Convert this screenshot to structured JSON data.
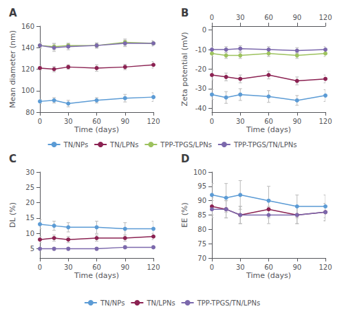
{
  "chart_data": [
    {
      "type": "line",
      "title": "A",
      "x": [
        0,
        15,
        30,
        60,
        90,
        120
      ],
      "xlabel": "Time (days)",
      "ylabel": "Mean diameter (nm)",
      "xlim": [
        0,
        120
      ],
      "xticks": [
        0,
        30,
        60,
        90,
        120
      ],
      "ylim": [
        80,
        160
      ],
      "yticks": [
        80,
        100,
        120,
        140,
        160
      ],
      "grid": false,
      "legend": "bottom",
      "marker": "circle",
      "series": [
        {
          "name": "TN/NPs",
          "color": "#5B9BD5",
          "values": [
            90,
            91,
            88,
            91,
            93,
            94
          ],
          "errors": [
            2,
            2.5,
            3,
            2.5,
            3.5,
            4
          ]
        },
        {
          "name": "TN/LPNs",
          "color": "#8B2252",
          "values": [
            121,
            120,
            122,
            121,
            122,
            124
          ],
          "errors": [
            2,
            2.5,
            2,
            3,
            2.5,
            3
          ]
        },
        {
          "name": "TPP-TPGS/LPNs",
          "color": "#9DC25E",
          "values": [
            142,
            141,
            142,
            142,
            145,
            144
          ],
          "errors": [
            2.5,
            3,
            2,
            2.5,
            3,
            2
          ]
        },
        {
          "name": "TPP-TPGS/TN/LPNs",
          "color": "#7B68AC",
          "values": [
            142,
            140,
            141,
            142,
            144,
            144
          ],
          "errors": [
            2.5,
            3.5,
            3,
            2,
            3,
            2.5
          ]
        }
      ]
    },
    {
      "type": "line",
      "title": "B",
      "x": [
        0,
        15,
        30,
        60,
        90,
        120
      ],
      "xlabel": "Time (days)",
      "ylabel": "Zeta potential (mV)",
      "xlim": [
        0,
        120
      ],
      "xticks": [
        0,
        30,
        60,
        90,
        120
      ],
      "x2lim": [
        0,
        120
      ],
      "x2ticks": [
        0,
        30,
        60,
        90,
        120
      ],
      "ylim": [
        -42,
        2
      ],
      "yticks": [
        -40,
        -30,
        -20,
        -10,
        0
      ],
      "grid": false,
      "marker": "circle",
      "series": [
        {
          "name": "TN/NPs",
          "color": "#5B9BD5",
          "values": [
            -33,
            -34.5,
            -33,
            -34,
            -36,
            -33.5
          ],
          "errors": [
            2.5,
            3,
            3,
            3,
            2.5,
            3
          ]
        },
        {
          "name": "TN/LPNs",
          "color": "#8B2252",
          "values": [
            -23,
            -24,
            -25,
            -23,
            -26,
            -25
          ],
          "errors": [
            2.5,
            2,
            2,
            2,
            2,
            2
          ]
        },
        {
          "name": "TPP-TPGS/LPNs",
          "color": "#9DC25E",
          "values": [
            -12,
            -13,
            -13,
            -12,
            -13,
            -12
          ],
          "errors": [
            1.5,
            1.5,
            1.5,
            1.5,
            1.5,
            1.5
          ]
        },
        {
          "name": "TPP-TPGS/TN/LPNs",
          "color": "#7B68AC",
          "values": [
            -10,
            -10,
            -9.5,
            -10,
            -10.5,
            -10
          ],
          "errors": [
            1.5,
            1.5,
            1.5,
            1.5,
            1.5,
            1.5
          ]
        }
      ]
    },
    {
      "type": "line",
      "title": "C",
      "x": [
        0,
        15,
        30,
        60,
        90,
        120
      ],
      "xlabel": "Time (days)",
      "ylabel": "DL (%)",
      "xlim": [
        0,
        120
      ],
      "xticks": [
        0,
        30,
        60,
        90,
        120
      ],
      "ylim": [
        2,
        30
      ],
      "yticks": [
        5,
        10,
        15,
        20,
        25,
        30
      ],
      "grid": false,
      "legend": "bottom",
      "marker": "circle",
      "series": [
        {
          "name": "TN/NPs",
          "color": "#5B9BD5",
          "values": [
            13,
            12.5,
            12,
            12,
            11.5,
            11.5
          ],
          "errors": [
            1.5,
            1.5,
            1.5,
            2,
            2,
            2.5
          ]
        },
        {
          "name": "TN/LPNs",
          "color": "#8B2252",
          "values": [
            8,
            8.5,
            8,
            8.5,
            8.5,
            9
          ],
          "errors": [
            1,
            1,
            1,
            1,
            1,
            1
          ]
        },
        {
          "name": "TPP-TPGS/TN/LPNs",
          "color": "#7B68AC",
          "values": [
            5,
            5,
            5,
            5,
            5.5,
            5.5
          ],
          "errors": [
            0.5,
            0.5,
            0.5,
            0.5,
            0.5,
            0.5
          ]
        }
      ]
    },
    {
      "type": "line",
      "title": "D",
      "x": [
        0,
        15,
        30,
        60,
        90,
        120
      ],
      "xlabel": "Time (days)",
      "ylabel": "EE (%)",
      "xlim": [
        0,
        120
      ],
      "xticks": [
        0,
        30,
        60,
        90,
        120
      ],
      "ylim": [
        70,
        100
      ],
      "yticks": [
        70,
        75,
        80,
        85,
        90,
        95,
        100
      ],
      "grid": false,
      "marker": "circle",
      "series": [
        {
          "name": "TN/NPs",
          "color": "#5B9BD5",
          "values": [
            92,
            91,
            92,
            90,
            88,
            88
          ],
          "errors": [
            4,
            5,
            5,
            5,
            4,
            4
          ]
        },
        {
          "name": "TN/LPNs",
          "color": "#8B2252",
          "values": [
            88,
            87,
            85,
            87,
            85,
            86
          ],
          "errors": [
            3,
            3,
            3,
            3,
            3,
            3
          ]
        },
        {
          "name": "TPP-TPGS/TN/LPNs",
          "color": "#7B68AC",
          "values": [
            87,
            87,
            85,
            85,
            85,
            86
          ],
          "errors": [
            3,
            3,
            3,
            3,
            3,
            3
          ]
        }
      ]
    }
  ]
}
